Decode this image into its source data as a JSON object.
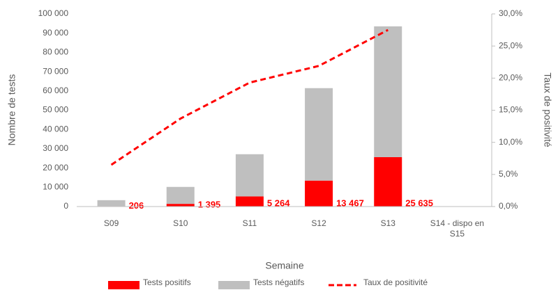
{
  "chart_data": {
    "type": "bar",
    "stacked": true,
    "categories": [
      "S09",
      "S10",
      "S11",
      "S12",
      "S13",
      "S14 - dispo en S15"
    ],
    "series": [
      {
        "name": "Tests positifs",
        "color": "#ff0000",
        "values": [
          206,
          1395,
          5264,
          13467,
          25635,
          null
        ],
        "value_labels": [
          "206",
          "1 395",
          "5 264",
          "13 467",
          "25 635",
          null
        ]
      },
      {
        "name": "Tests négatifs",
        "color": "#bfbfbf",
        "values": [
          3100,
          8800,
          21900,
          48000,
          67900,
          null
        ]
      },
      {
        "name": "Taux de positivité",
        "color": "#ff0000",
        "type": "line",
        "dashed": true,
        "axis": "y2",
        "values": [
          6.5,
          13.7,
          19.3,
          21.9,
          27.5,
          null
        ]
      }
    ],
    "xlabel": "Semaine",
    "ylabel": "Nombre de tests",
    "y2label": "Taux de positivité",
    "ylim": [
      0,
      100000
    ],
    "yticks": [
      {
        "value": 0,
        "label": "0"
      },
      {
        "value": 10000,
        "label": "10 000"
      },
      {
        "value": 20000,
        "label": "20 000"
      },
      {
        "value": 30000,
        "label": "30 000"
      },
      {
        "value": 40000,
        "label": "40 000"
      },
      {
        "value": 50000,
        "label": "50 000"
      },
      {
        "value": 60000,
        "label": "60 000"
      },
      {
        "value": 70000,
        "label": "70 000"
      },
      {
        "value": 80000,
        "label": "80 000"
      },
      {
        "value": 90000,
        "label": "90 000"
      },
      {
        "value": 100000,
        "label": "100 000"
      }
    ],
    "y2lim": [
      0,
      30
    ],
    "y2ticks": [
      {
        "value": 0,
        "label": "0,0%"
      },
      {
        "value": 5,
        "label": "5,0%"
      },
      {
        "value": 10,
        "label": "10,0%"
      },
      {
        "value": 15,
        "label": "15,0%"
      },
      {
        "value": 20,
        "label": "20,0%"
      },
      {
        "value": 25,
        "label": "25,0%"
      },
      {
        "value": 30,
        "label": "30,0%"
      }
    ],
    "grid": false,
    "legend": "bottom"
  }
}
